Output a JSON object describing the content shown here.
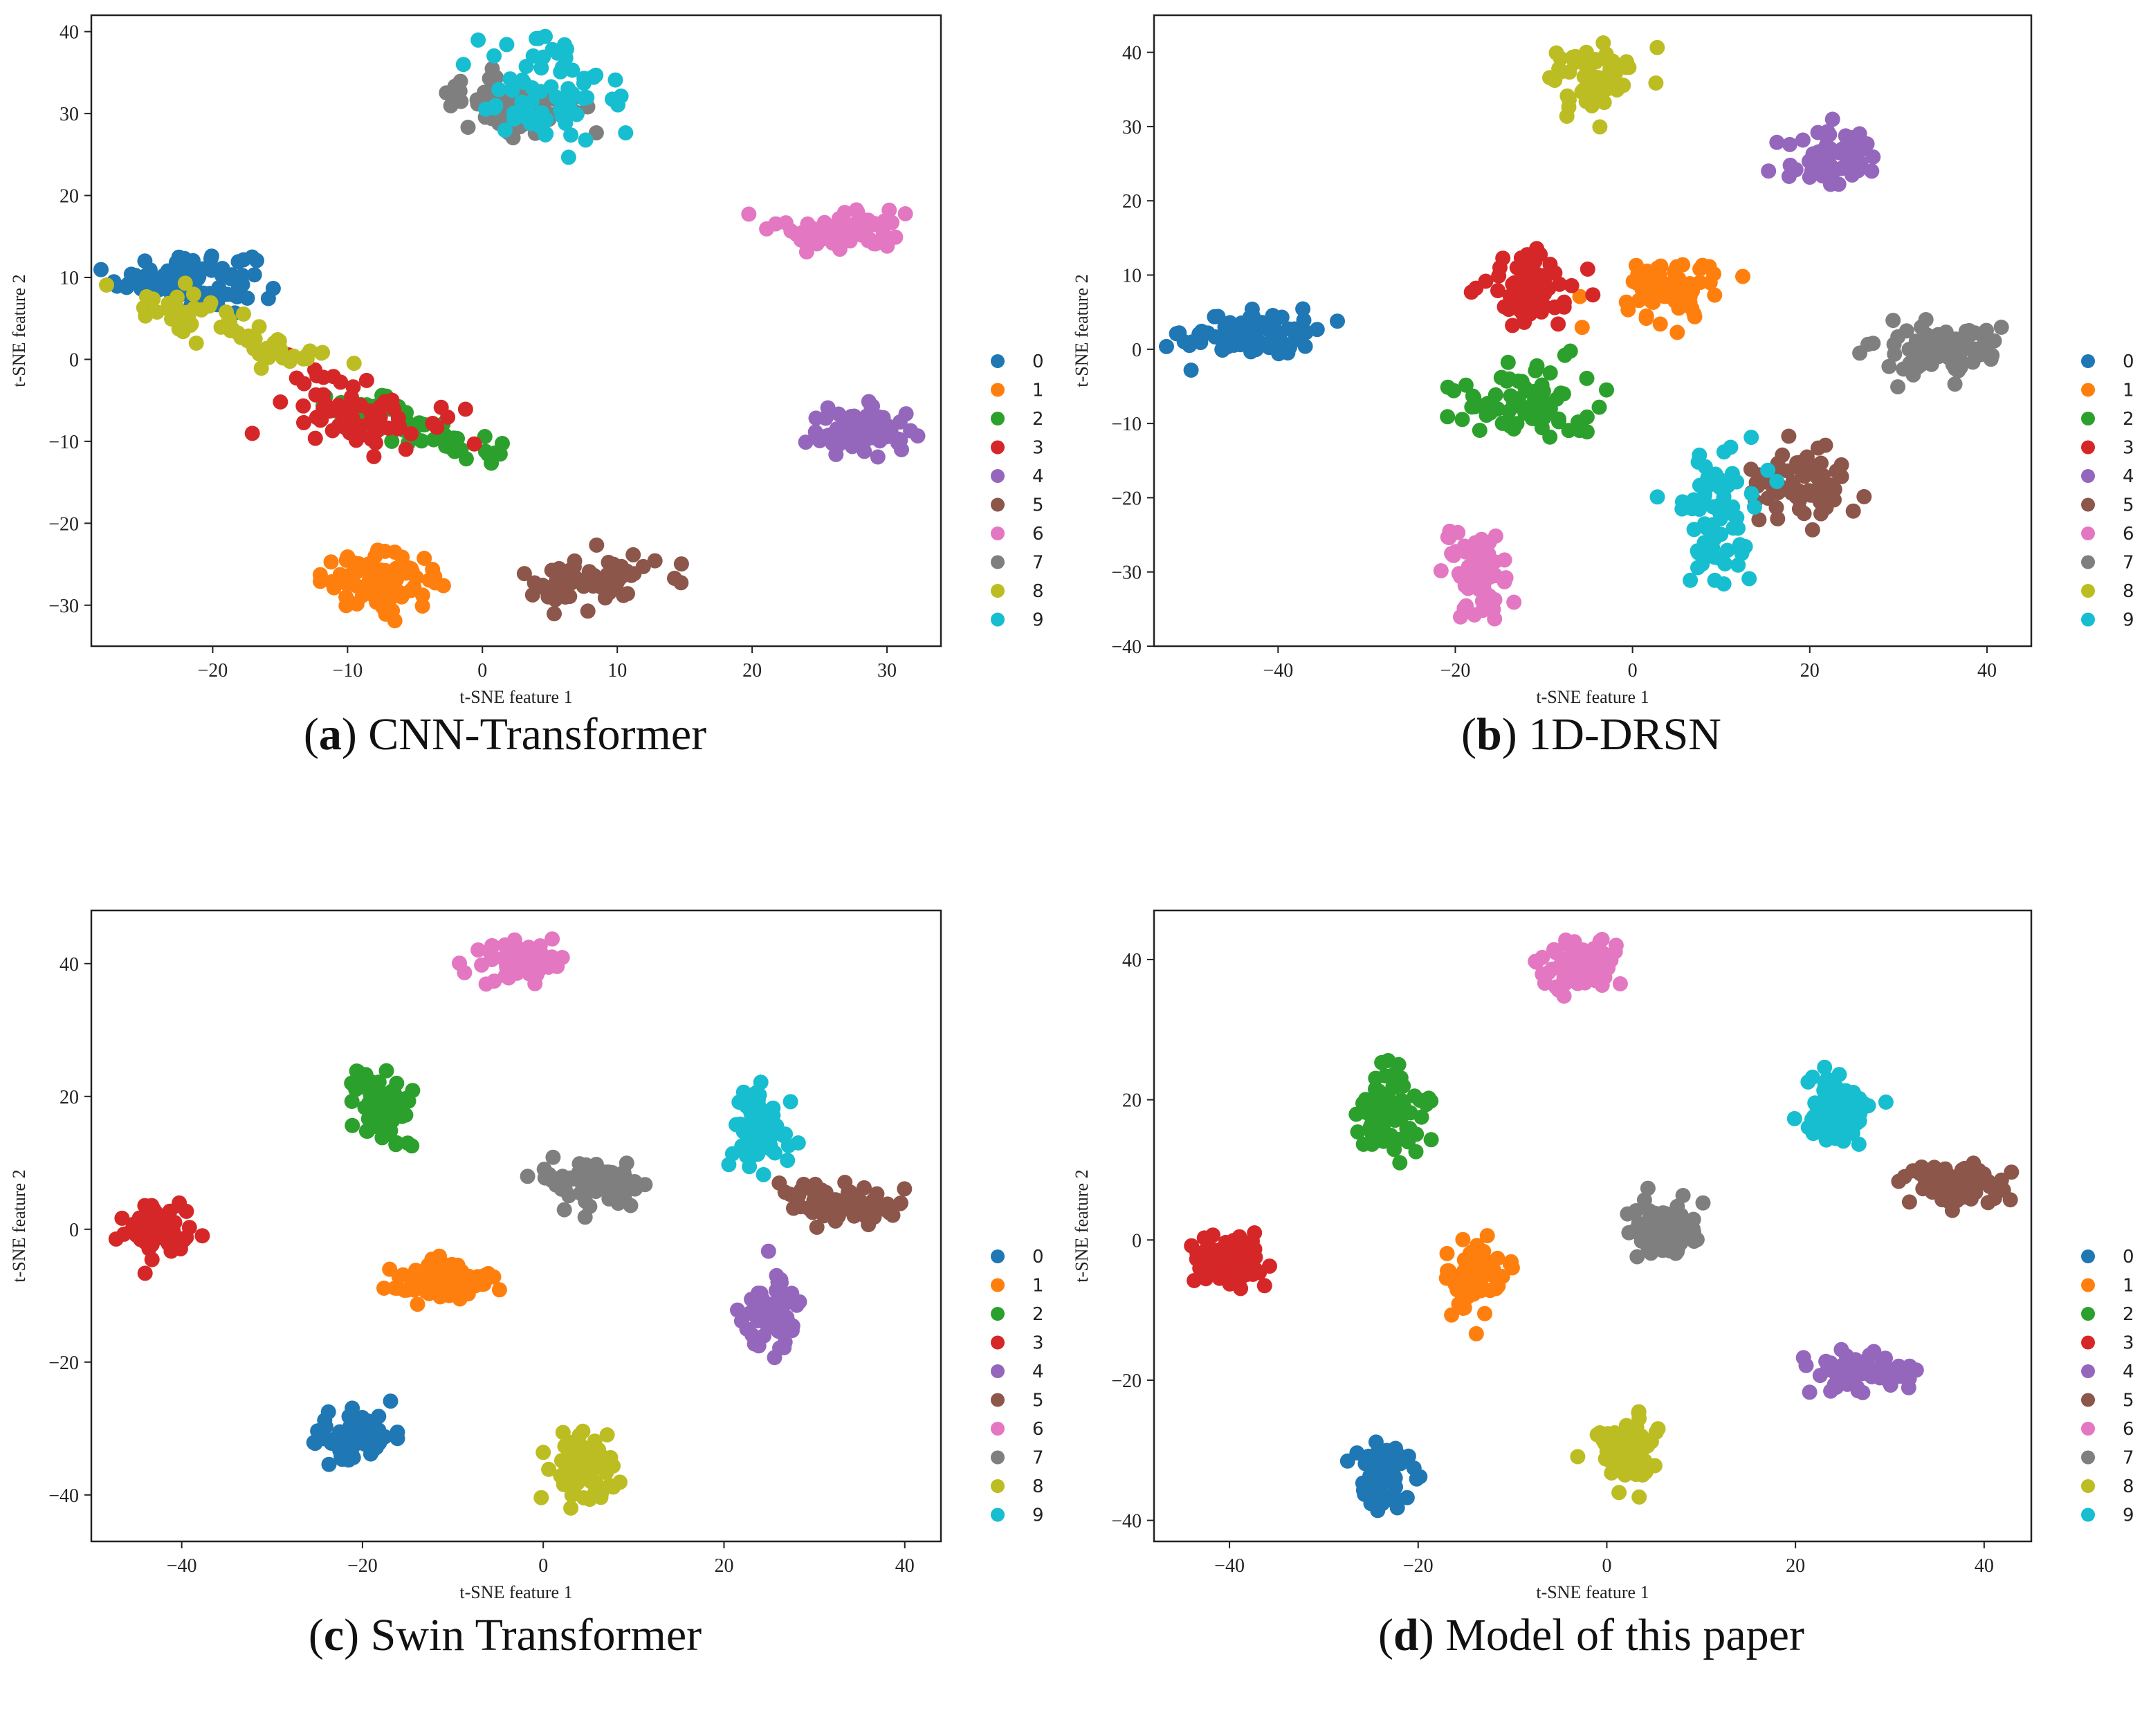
{
  "figure": {
    "palette": {
      "0": "#1f77b4",
      "1": "#ff7f0e",
      "2": "#2ca02c",
      "3": "#d62728",
      "4": "#9467bd",
      "5": "#8c564b",
      "6": "#e377c2",
      "7": "#7f7f7f",
      "8": "#bcbd22",
      "9": "#17becf"
    }
  },
  "chart_data": [
    {
      "type": "scatter",
      "caption_letter": "a",
      "caption_text": " CNN-Transformer",
      "xlabel": "t-SNE feature 1",
      "ylabel": "t-SNE feature 2",
      "xlim": [
        -29,
        34
      ],
      "ylim": [
        -35,
        42
      ],
      "xticks": [
        -20,
        -10,
        0,
        10,
        20,
        30
      ],
      "yticks": [
        -30,
        -20,
        -10,
        0,
        10,
        20,
        30,
        40
      ],
      "legend": [
        "0",
        "1",
        "2",
        "3",
        "4",
        "5",
        "6",
        "7",
        "8",
        "9"
      ],
      "legend_position": "right",
      "series": [
        {
          "name": "0",
          "center": [
            -22,
            10
          ],
          "spread": [
            2.5,
            1.6
          ],
          "count": 110
        },
        {
          "name": "1",
          "center": [
            -7.5,
            -27
          ],
          "spread": [
            2.2,
            1.6
          ],
          "count": 90
        },
        {
          "name": "2",
          "center": [
            -4,
            -8
          ],
          "spread": [
            3.5,
            1.8
          ],
          "count": 60,
          "direction": [
            [
              -10,
              -5
            ],
            [
              0,
              -12
            ]
          ]
        },
        {
          "name": "3",
          "center": [
            -9,
            -6
          ],
          "spread": [
            2.8,
            2.4
          ],
          "count": 70
        },
        {
          "name": "4",
          "center": [
            28,
            -9
          ],
          "spread": [
            2.0,
            1.5
          ],
          "count": 70
        },
        {
          "name": "5",
          "center": [
            8,
            -27
          ],
          "spread": [
            2.5,
            1.8
          ],
          "count": 60
        },
        {
          "name": "6",
          "center": [
            27,
            16
          ],
          "spread": [
            2.5,
            1.3
          ],
          "count": 70
        },
        {
          "name": "7",
          "center": [
            2,
            31
          ],
          "spread": [
            2.2,
            1.6
          ],
          "count": 90
        },
        {
          "name": "9",
          "center": [
            5,
            33
          ],
          "spread": [
            3.0,
            4.0
          ],
          "count": 70
        },
        {
          "name": "8",
          "center": [
            -17,
            3
          ],
          "spread": [
            3.0,
            2.8
          ],
          "count": 60,
          "direction": [
            [
              -24,
              8
            ],
            [
              -12,
              -1
            ]
          ]
        }
      ]
    },
    {
      "type": "scatter",
      "caption_letter": "b",
      "caption_text": " 1D-DRSN",
      "xlabel": "t-SNE feature 1",
      "ylabel": "t-SNE feature 2",
      "xlim": [
        -54,
        45
      ],
      "ylim": [
        -40,
        45
      ],
      "xticks": [
        -40,
        -20,
        0,
        20,
        40
      ],
      "yticks": [
        -40,
        -30,
        -20,
        -10,
        0,
        10,
        20,
        30,
        40
      ],
      "legend": [
        "0",
        "1",
        "2",
        "3",
        "4",
        "5",
        "6",
        "7",
        "8",
        "9"
      ],
      "legend_position": "right",
      "series": [
        {
          "name": "0",
          "center": [
            -43,
            2
          ],
          "spread": [
            3.8,
            1.6
          ],
          "count": 80
        },
        {
          "name": "1",
          "center": [
            4,
            8
          ],
          "spread": [
            3.0,
            2.2
          ],
          "count": 70
        },
        {
          "name": "2",
          "center": [
            -12,
            -7
          ],
          "spread": [
            4.0,
            2.5
          ],
          "count": 80
        },
        {
          "name": "3",
          "center": [
            -12,
            8
          ],
          "spread": [
            2.8,
            2.8
          ],
          "count": 70
        },
        {
          "name": "4",
          "center": [
            23,
            26
          ],
          "spread": [
            2.5,
            2.0
          ],
          "count": 70
        },
        {
          "name": "5",
          "center": [
            19,
            -18
          ],
          "spread": [
            3.0,
            2.0
          ],
          "count": 70
        },
        {
          "name": "6",
          "center": [
            -18,
            -30
          ],
          "spread": [
            1.8,
            3.0
          ],
          "count": 70
        },
        {
          "name": "7",
          "center": [
            34,
            0
          ],
          "spread": [
            3.5,
            1.6
          ],
          "count": 80
        },
        {
          "name": "8",
          "center": [
            -4,
            36
          ],
          "spread": [
            2.5,
            2.2
          ],
          "count": 70
        },
        {
          "name": "9",
          "center": [
            9,
            -22
          ],
          "spread": [
            2.5,
            4.5
          ],
          "count": 70
        }
      ]
    },
    {
      "type": "scatter",
      "caption_letter": "c",
      "caption_text": " Swin Transformer",
      "xlabel": "t-SNE feature 1",
      "ylabel": "t-SNE feature 2",
      "xlim": [
        -50,
        44
      ],
      "ylim": [
        -47,
        48
      ],
      "xticks": [
        -40,
        -20,
        0,
        20,
        40
      ],
      "yticks": [
        -40,
        -20,
        0,
        20,
        40
      ],
      "legend": [
        "0",
        "1",
        "2",
        "3",
        "4",
        "5",
        "6",
        "7",
        "8",
        "9"
      ],
      "legend_position": "right",
      "series": [
        {
          "name": "0",
          "center": [
            -21,
            -31
          ],
          "spread": [
            2.2,
            2.0
          ],
          "count": 80
        },
        {
          "name": "1",
          "center": [
            -11,
            -8
          ],
          "spread": [
            2.8,
            1.5
          ],
          "count": 80
        },
        {
          "name": "2",
          "center": [
            -18,
            18
          ],
          "spread": [
            1.8,
            3.0
          ],
          "count": 70
        },
        {
          "name": "3",
          "center": [
            -42,
            0
          ],
          "spread": [
            2.0,
            2.0
          ],
          "count": 70
        },
        {
          "name": "4",
          "center": [
            25,
            -13
          ],
          "spread": [
            1.5,
            3.0
          ],
          "count": 70
        },
        {
          "name": "5",
          "center": [
            33,
            4
          ],
          "spread": [
            3.2,
            1.5
          ],
          "count": 70
        },
        {
          "name": "6",
          "center": [
            -3,
            40
          ],
          "spread": [
            2.2,
            1.6
          ],
          "count": 80
        },
        {
          "name": "7",
          "center": [
            5,
            7
          ],
          "spread": [
            3.0,
            1.5
          ],
          "count": 80
        },
        {
          "name": "8",
          "center": [
            4,
            -36
          ],
          "spread": [
            1.8,
            2.5
          ],
          "count": 70
        },
        {
          "name": "9",
          "center": [
            24,
            15
          ],
          "spread": [
            1.5,
            3.0
          ],
          "count": 70
        }
      ]
    },
    {
      "type": "scatter",
      "caption_letter": "d",
      "caption_text": " Model of this paper",
      "xlabel": "t-SNE feature 1",
      "ylabel": "t-SNE feature 2",
      "xlim": [
        -48,
        45
      ],
      "ylim": [
        -43,
        47
      ],
      "xticks": [
        -40,
        -20,
        0,
        20,
        40
      ],
      "yticks": [
        -40,
        -20,
        0,
        20,
        40
      ],
      "legend": [
        "0",
        "1",
        "2",
        "3",
        "4",
        "5",
        "6",
        "7",
        "8",
        "9"
      ],
      "legend_position": "right",
      "series": [
        {
          "name": "0",
          "center": [
            -24,
            -34
          ],
          "spread": [
            1.5,
            2.5
          ],
          "count": 80
        },
        {
          "name": "1",
          "center": [
            -14,
            -5
          ],
          "spread": [
            1.5,
            2.5
          ],
          "count": 80
        },
        {
          "name": "2",
          "center": [
            -23,
            18
          ],
          "spread": [
            1.8,
            3.0
          ],
          "count": 80
        },
        {
          "name": "3",
          "center": [
            -40,
            -3
          ],
          "spread": [
            2.0,
            1.8
          ],
          "count": 80
        },
        {
          "name": "4",
          "center": [
            27,
            -19
          ],
          "spread": [
            2.5,
            1.4
          ],
          "count": 80
        },
        {
          "name": "5",
          "center": [
            37,
            8
          ],
          "spread": [
            2.5,
            1.4
          ],
          "count": 80
        },
        {
          "name": "6",
          "center": [
            -3,
            39
          ],
          "spread": [
            2.0,
            2.0
          ],
          "count": 80
        },
        {
          "name": "7",
          "center": [
            6,
            1
          ],
          "spread": [
            1.8,
            2.0
          ],
          "count": 80
        },
        {
          "name": "8",
          "center": [
            2,
            -30
          ],
          "spread": [
            1.6,
            2.5
          ],
          "count": 80
        },
        {
          "name": "9",
          "center": [
            24,
            18
          ],
          "spread": [
            2.0,
            2.5
          ],
          "count": 80
        }
      ]
    }
  ]
}
